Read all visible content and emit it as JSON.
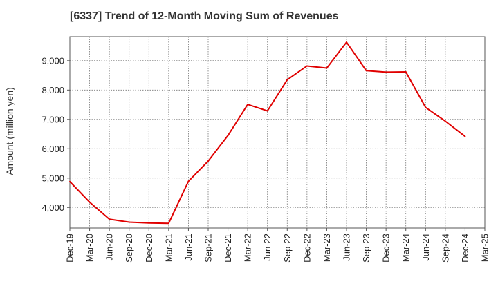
{
  "chart_data": {
    "type": "line",
    "title": "[6337]  Trend of 12-Month Moving Sum of Revenues",
    "xlabel": "",
    "ylabel": "Amount (million yen)",
    "categories": [
      "Dec-19",
      "Mar-20",
      "Jun-20",
      "Sep-20",
      "Dec-20",
      "Mar-21",
      "Jun-21",
      "Sep-21",
      "Dec-21",
      "Mar-22",
      "Jun-22",
      "Sep-22",
      "Dec-22",
      "Mar-23",
      "Jun-23",
      "Sep-23",
      "Dec-23",
      "Mar-24",
      "Jun-24",
      "Sep-24",
      "Dec-24",
      "Mar-25"
    ],
    "yticks": [
      4000,
      5000,
      6000,
      7000,
      8000,
      9000
    ],
    "ytick_labels": [
      "4,000",
      "5,000",
      "6,000",
      "7,000",
      "8,000",
      "9,000"
    ],
    "ylim": [
      3300,
      9820
    ],
    "grid": true,
    "line_color": "#e00000",
    "series": [
      {
        "values": [
          4880,
          4180,
          3600,
          3500,
          3470,
          3460,
          4890,
          5580,
          6450,
          7510,
          7290,
          8350,
          8820,
          8750,
          9630,
          8660,
          8610,
          8620,
          7410,
          6940,
          6420,
          null
        ]
      }
    ]
  }
}
